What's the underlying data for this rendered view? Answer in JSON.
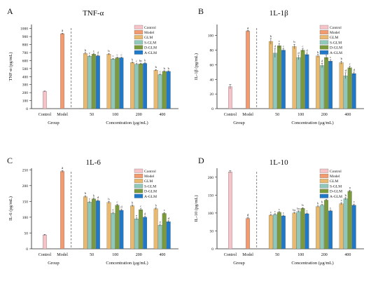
{
  "colors": {
    "Control": "#f6c4c8",
    "Model": "#f39a6e",
    "GLM": "#e8b96f",
    "S-GLM": "#8fc7b8",
    "D-GLM": "#7a9a3c",
    "A-GLM": "#1f78c8"
  },
  "chart_data": [
    {
      "id": "A",
      "type": "bar",
      "panel_letter": "A",
      "title": "TNF-α",
      "ylabel": "TNF-α (pg/mL)",
      "xlabel_left": "Group",
      "xlabel_right": "Concentration (μg/mL)",
      "ylim": [
        0,
        1050
      ],
      "yticks": [
        0,
        100,
        200,
        300,
        400,
        500,
        600,
        700,
        800,
        900,
        1000
      ],
      "group_categories": [
        "Control",
        "Model"
      ],
      "group_values": [
        215,
        935
      ],
      "group_errors": [
        5,
        8
      ],
      "group_letters": [
        "",
        "a"
      ],
      "conc_categories": [
        "50",
        "100",
        "200",
        "400"
      ],
      "legend": [
        "Control",
        "Model",
        "GLM",
        "S-GLM",
        "D-GLM",
        "A-GLM"
      ],
      "series": [
        {
          "name": "GLM",
          "values": [
            690,
            680,
            575,
            480
          ],
          "errors": [
            12,
            10,
            8,
            8
          ],
          "letters": [
            "b",
            "b",
            "b",
            "b"
          ]
        },
        {
          "name": "S-GLM",
          "values": [
            655,
            620,
            555,
            425
          ],
          "errors": [
            10,
            8,
            8,
            8
          ],
          "letters": [
            "c",
            "c",
            "c",
            "c"
          ]
        },
        {
          "name": "D-GLM",
          "values": [
            680,
            635,
            560,
            465
          ],
          "errors": [
            12,
            8,
            8,
            8
          ],
          "letters": [
            "c",
            "c",
            "bc",
            "b"
          ]
        },
        {
          "name": "A-GLM",
          "values": [
            660,
            635,
            565,
            465
          ],
          "errors": [
            10,
            8,
            8,
            8
          ],
          "letters": [
            "d",
            "c",
            "b",
            "b"
          ]
        }
      ]
    },
    {
      "id": "B",
      "type": "bar",
      "panel_letter": "B",
      "title": "1L-1β",
      "ylabel": "IL-1β (pg/mL)",
      "xlabel_left": "Group",
      "xlabel_right": "Concentration (μg/mL)",
      "ylim": [
        0,
        115
      ],
      "yticks": [
        0,
        20,
        40,
        60,
        80,
        100
      ],
      "group_categories": [
        "Control",
        "Model"
      ],
      "group_values": [
        30,
        106
      ],
      "group_errors": [
        3,
        1
      ],
      "group_letters": [
        "",
        "a"
      ],
      "conc_categories": [
        "50",
        "100",
        "200",
        "400"
      ],
      "legend": [
        "Control",
        "Model",
        "GLM",
        "S-GLM",
        "D-GLM",
        "A-GLM"
      ],
      "series": [
        {
          "name": "GLM",
          "values": [
            92,
            85,
            72,
            63
          ],
          "errors": [
            4,
            3,
            2,
            2
          ],
          "letters": [
            "b",
            "b",
            "b",
            "b"
          ]
        },
        {
          "name": "S-GLM",
          "values": [
            76,
            70,
            59,
            45
          ],
          "errors": [
            6,
            3,
            3,
            4
          ],
          "letters": [
            "d",
            "d",
            "d",
            "d"
          ]
        },
        {
          "name": "D-GLM",
          "values": [
            86,
            80,
            70,
            56
          ],
          "errors": [
            3,
            2,
            3,
            2
          ],
          "letters": [
            "c",
            "c",
            "c",
            "c"
          ]
        },
        {
          "name": "A-GLM",
          "values": [
            80,
            74,
            65,
            48
          ],
          "errors": [
            2,
            2,
            2,
            2
          ],
          "letters": [
            "c",
            "d",
            "c",
            "d"
          ]
        }
      ]
    },
    {
      "id": "C",
      "type": "bar",
      "panel_letter": "C",
      "title": "1L-6",
      "ylabel": "IL-6 (pg/mL)",
      "xlabel_left": "Group",
      "xlabel_right": "Concentration (μg/mL)",
      "ylim": [
        0,
        255
      ],
      "yticks": [
        0,
        50,
        100,
        150,
        200,
        250
      ],
      "group_categories": [
        "Control",
        "Model"
      ],
      "group_values": [
        44,
        245
      ],
      "group_errors": [
        2,
        3
      ],
      "group_letters": [
        "",
        "a"
      ],
      "conc_categories": [
        "50",
        "100",
        "200",
        "400"
      ],
      "legend": [
        "Control",
        "Model",
        "GLM",
        "S-GLM",
        "D-GLM",
        "A-GLM"
      ],
      "series": [
        {
          "name": "GLM",
          "values": [
            165,
            147,
            136,
            127
          ],
          "errors": [
            3,
            3,
            3,
            3
          ],
          "letters": [
            "b",
            "b",
            "b",
            "b"
          ]
        },
        {
          "name": "S-GLM",
          "values": [
            148,
            113,
            95,
            75
          ],
          "errors": [
            3,
            3,
            3,
            3
          ],
          "letters": [
            "c",
            "e",
            "e",
            "e"
          ]
        },
        {
          "name": "D-GLM",
          "values": [
            158,
            138,
            124,
            112
          ],
          "errors": [
            3,
            3,
            3,
            3
          ],
          "letters": [
            "b",
            "c",
            "c",
            "c"
          ]
        },
        {
          "name": "A-GLM",
          "values": [
            152,
            122,
            100,
            86
          ],
          "errors": [
            3,
            3,
            3,
            3
          ],
          "letters": [
            "d",
            "d",
            "d",
            "d"
          ]
        }
      ]
    },
    {
      "id": "D",
      "type": "bar",
      "panel_letter": "D",
      "title": "1L-10",
      "ylabel": "IL-10 (pg/mL)",
      "xlabel_left": "Group",
      "xlabel_right": "Concentration (μg/mL)",
      "ylim": [
        0,
        225
      ],
      "yticks": [
        0,
        50,
        100,
        150,
        200
      ],
      "group_categories": [
        "Control",
        "Model"
      ],
      "group_values": [
        215,
        85
      ],
      "group_errors": [
        3,
        2
      ],
      "group_letters": [
        "",
        "d"
      ],
      "conc_categories": [
        "50",
        "100",
        "200",
        "400"
      ],
      "legend": [
        "Control",
        "Model",
        "GLM",
        "S-GLM",
        "D-GLM",
        "A-GLM"
      ],
      "series": [
        {
          "name": "GLM",
          "values": [
            94,
            100,
            118,
            126
          ],
          "errors": [
            2,
            2,
            2,
            3
          ],
          "letters": [
            "c",
            "bc",
            "b",
            "c"
          ]
        },
        {
          "name": "S-GLM",
          "values": [
            96,
            104,
            122,
            140
          ],
          "errors": [
            2,
            2,
            2,
            3
          ],
          "letters": [
            "c",
            "bc",
            "b",
            "b"
          ]
        },
        {
          "name": "D-GLM",
          "values": [
            102,
            113,
            136,
            161
          ],
          "errors": [
            2,
            2,
            2,
            3
          ],
          "letters": [
            "c",
            "b",
            "a",
            "a"
          ]
        },
        {
          "name": "A-GLM",
          "values": [
            92,
            98,
            106,
            122
          ],
          "errors": [
            2,
            2,
            2,
            3
          ],
          "letters": [
            "c",
            "c",
            "c",
            "c"
          ]
        }
      ]
    }
  ]
}
